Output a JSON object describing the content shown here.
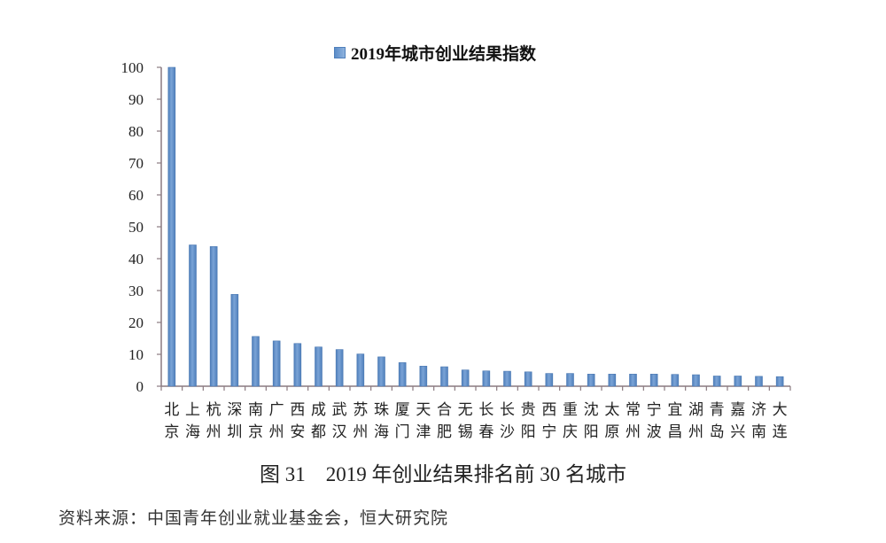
{
  "chart_data": {
    "type": "bar",
    "title": "2019年城市创业结果指数",
    "legend": [
      "2019年城市创业结果指数"
    ],
    "legend_position": "top",
    "xlabel": "",
    "ylabel": "",
    "ylim": [
      0,
      100
    ],
    "yticks": [
      0,
      10,
      20,
      30,
      40,
      50,
      60,
      70,
      80,
      90,
      100
    ],
    "grid": false,
    "bar_color": "#5b8cc8",
    "categories": [
      "北京",
      "上海",
      "杭州",
      "深圳",
      "南京",
      "广州",
      "西安",
      "成都",
      "武汉",
      "苏州",
      "珠海",
      "厦门",
      "天津",
      "合肥",
      "无锡",
      "长春",
      "长沙",
      "贵阳",
      "西宁",
      "重庆",
      "沈阳",
      "太原",
      "常州",
      "宁波",
      "宜昌",
      "湖州",
      "青岛",
      "嘉兴",
      "济南",
      "大连"
    ],
    "series": [
      {
        "name": "2019年城市创业结果指数",
        "values": [
          100,
          44.3,
          43.8,
          28.8,
          15.6,
          14.2,
          13.4,
          12.3,
          11.5,
          10.1,
          9.2,
          7.4,
          6.3,
          6.1,
          5.1,
          4.8,
          4.7,
          4.5,
          4.0,
          4.0,
          3.8,
          3.8,
          3.8,
          3.8,
          3.7,
          3.6,
          3.2,
          3.2,
          3.1,
          3.0
        ]
      }
    ]
  },
  "figure": {
    "caption": "图 31　2019 年创业结果排名前 30 名城市",
    "source": "资料来源：中国青年创业就业基金会，恒大研究院"
  }
}
